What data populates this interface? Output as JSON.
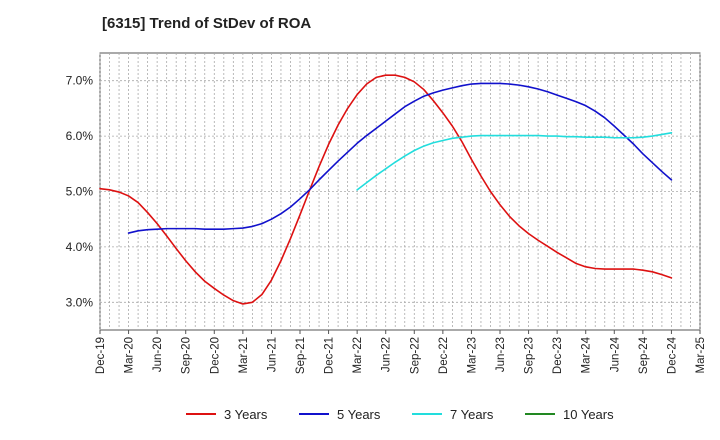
{
  "chart_data": {
    "type": "line",
    "title": "[6315]  Trend of StDev of ROA",
    "xlabel": "",
    "ylabel": "",
    "ylim": [
      2.5,
      7.5
    ],
    "y_ticks": [
      3.0,
      4.0,
      5.0,
      6.0,
      7.0
    ],
    "y_tick_labels": [
      "3.0%",
      "4.0%",
      "5.0%",
      "6.0%",
      "7.0%"
    ],
    "x_tick_labels": [
      "Dec-19",
      "Mar-20",
      "Jun-20",
      "Sep-20",
      "Dec-20",
      "Mar-21",
      "Jun-21",
      "Sep-21",
      "Dec-21",
      "Mar-22",
      "Jun-22",
      "Sep-22",
      "Dec-22",
      "Mar-23",
      "Jun-23",
      "Sep-23",
      "Dec-23",
      "Mar-24",
      "Jun-24",
      "Sep-24",
      "Dec-24",
      "Mar-25"
    ],
    "grid": true,
    "legend_position": "bottom",
    "series": [
      {
        "name": "3 Years",
        "color": "#dd1111",
        "x": [
          "Dec-19",
          "Jan-20",
          "Feb-20",
          "Mar-20",
          "Apr-20",
          "May-20",
          "Jun-20",
          "Jul-20",
          "Aug-20",
          "Sep-20",
          "Oct-20",
          "Nov-20",
          "Dec-20",
          "Jan-21",
          "Feb-21",
          "Mar-21",
          "Apr-21",
          "May-21",
          "Jun-21",
          "Jul-21",
          "Aug-21",
          "Sep-21",
          "Oct-21",
          "Nov-21",
          "Dec-21",
          "Jan-22",
          "Feb-22",
          "Mar-22",
          "Apr-22",
          "May-22",
          "Jun-22",
          "Jul-22",
          "Aug-22",
          "Sep-22",
          "Oct-22",
          "Nov-22",
          "Dec-22",
          "Jan-23",
          "Feb-23",
          "Mar-23",
          "Apr-23",
          "May-23",
          "Jun-23",
          "Jul-23",
          "Aug-23",
          "Sep-23",
          "Oct-23",
          "Nov-23",
          "Dec-23",
          "Jan-24",
          "Feb-24",
          "Mar-24",
          "Apr-24",
          "May-24",
          "Jun-24",
          "Jul-24",
          "Aug-24",
          "Sep-24",
          "Oct-24",
          "Nov-24",
          "Dec-24"
        ],
        "values": [
          5.05,
          5.03,
          4.99,
          4.92,
          4.8,
          4.62,
          4.42,
          4.2,
          3.97,
          3.75,
          3.55,
          3.38,
          3.25,
          3.13,
          3.03,
          2.97,
          3.0,
          3.14,
          3.4,
          3.75,
          4.15,
          4.58,
          5.02,
          5.45,
          5.85,
          6.2,
          6.5,
          6.75,
          6.94,
          7.06,
          7.1,
          7.1,
          7.06,
          6.98,
          6.84,
          6.64,
          6.42,
          6.18,
          5.9,
          5.58,
          5.28,
          5.0,
          4.76,
          4.55,
          4.38,
          4.24,
          4.12,
          4.01,
          3.9,
          3.8,
          3.7,
          3.64,
          3.61,
          3.6,
          3.6,
          3.6,
          3.6,
          3.58,
          3.55,
          3.5,
          3.44
        ]
      },
      {
        "name": "5 Years",
        "color": "#1111cc",
        "x": [
          "Mar-20",
          "Apr-20",
          "May-20",
          "Jun-20",
          "Jul-20",
          "Aug-20",
          "Sep-20",
          "Oct-20",
          "Nov-20",
          "Dec-20",
          "Jan-21",
          "Feb-21",
          "Mar-21",
          "Apr-21",
          "May-21",
          "Jun-21",
          "Jul-21",
          "Aug-21",
          "Sep-21",
          "Oct-21",
          "Nov-21",
          "Dec-21",
          "Jan-22",
          "Feb-22",
          "Mar-22",
          "Apr-22",
          "May-22",
          "Jun-22",
          "Jul-22",
          "Aug-22",
          "Sep-22",
          "Oct-22",
          "Nov-22",
          "Dec-22",
          "Jan-23",
          "Feb-23",
          "Mar-23",
          "Apr-23",
          "May-23",
          "Jun-23",
          "Jul-23",
          "Aug-23",
          "Sep-23",
          "Oct-23",
          "Nov-23",
          "Dec-23",
          "Jan-24",
          "Feb-24",
          "Mar-24",
          "Apr-24",
          "May-24",
          "Jun-24",
          "Jul-24",
          "Aug-24",
          "Sep-24",
          "Oct-24",
          "Nov-24",
          "Dec-24"
        ],
        "values": [
          4.25,
          4.29,
          4.31,
          4.32,
          4.33,
          4.33,
          4.33,
          4.33,
          4.32,
          4.32,
          4.32,
          4.33,
          4.34,
          4.37,
          4.42,
          4.5,
          4.6,
          4.72,
          4.87,
          5.03,
          5.21,
          5.38,
          5.55,
          5.71,
          5.87,
          6.01,
          6.14,
          6.27,
          6.4,
          6.53,
          6.63,
          6.72,
          6.78,
          6.83,
          6.87,
          6.91,
          6.94,
          6.95,
          6.95,
          6.95,
          6.94,
          6.92,
          6.89,
          6.85,
          6.8,
          6.74,
          6.68,
          6.62,
          6.55,
          6.45,
          6.33,
          6.18,
          6.02,
          5.86,
          5.68,
          5.52,
          5.36,
          5.21
        ]
      },
      {
        "name": "7 Years",
        "color": "#22dddd",
        "x": [
          "Mar-22",
          "Apr-22",
          "May-22",
          "Jun-22",
          "Jul-22",
          "Aug-22",
          "Sep-22",
          "Oct-22",
          "Nov-22",
          "Dec-22",
          "Jan-23",
          "Feb-23",
          "Mar-23",
          "Apr-23",
          "May-23",
          "Jun-23",
          "Jul-23",
          "Aug-23",
          "Sep-23",
          "Oct-23",
          "Nov-23",
          "Dec-23",
          "Jan-24",
          "Feb-24",
          "Mar-24",
          "Apr-24",
          "May-24",
          "Jun-24",
          "Jul-24",
          "Aug-24",
          "Sep-24",
          "Oct-24",
          "Nov-24",
          "Dec-24"
        ],
        "values": [
          5.03,
          5.16,
          5.29,
          5.41,
          5.53,
          5.64,
          5.74,
          5.82,
          5.88,
          5.92,
          5.96,
          5.98,
          6.0,
          6.01,
          6.01,
          6.01,
          6.01,
          6.01,
          6.01,
          6.01,
          6.0,
          6.0,
          5.99,
          5.99,
          5.98,
          5.98,
          5.98,
          5.97,
          5.97,
          5.97,
          5.98,
          6.0,
          6.03,
          6.06
        ]
      },
      {
        "name": "10 Years",
        "color": "#228822",
        "x": [],
        "values": []
      }
    ]
  }
}
